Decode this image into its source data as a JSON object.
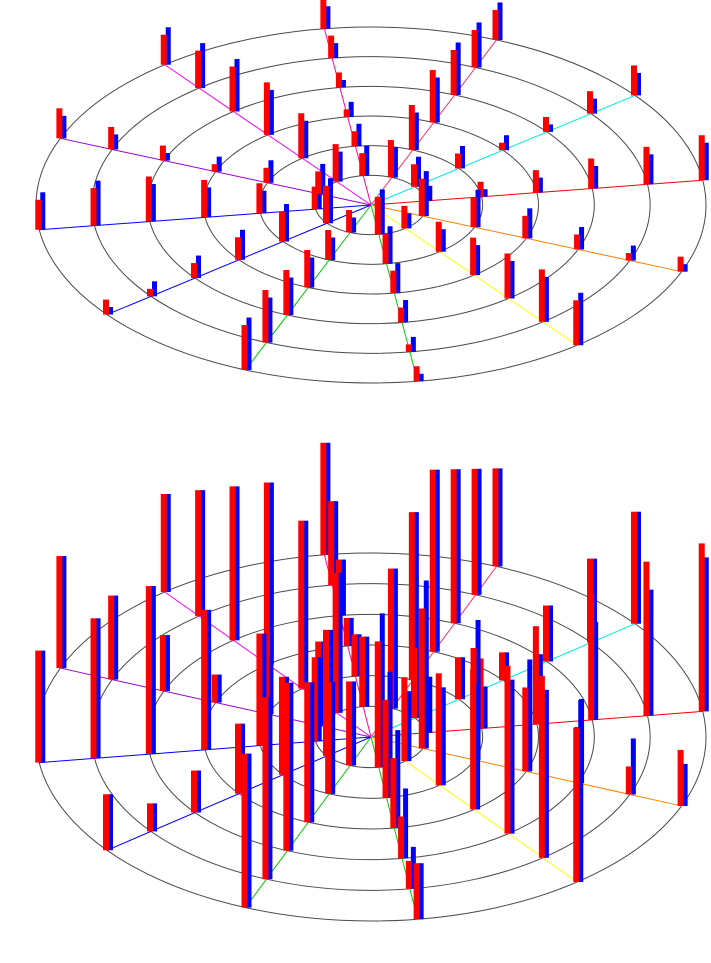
{
  "chart_data": [
    {
      "type": "polar-3d-bar",
      "title": "",
      "rings": 6,
      "spokes": 12,
      "colors": {
        "ring": "#4a4a4a",
        "spokes": [
          "#ff0000",
          "#ff8000",
          "#ffff00",
          "#00cc00",
          "#00cc00",
          "#0000ff",
          "#0000ff",
          "#9900cc",
          "#ff00ff",
          "#ff00aa",
          "#ff3366",
          "#00e6e6"
        ],
        "series_a": "#ff0000",
        "series_b": "#0000ff"
      },
      "series": [
        {
          "values": [
            1,
            2,
            3,
            4,
            5,
            6,
            5,
            4,
            3,
            2,
            1,
            2,
            3,
            4,
            5,
            6,
            7,
            6,
            5,
            4,
            3,
            2,
            1,
            2,
            3,
            4,
            5,
            6,
            7,
            6,
            5,
            4,
            3,
            2,
            1,
            2,
            3,
            4,
            5,
            6,
            5,
            4,
            3,
            2,
            1,
            2,
            3,
            4,
            5,
            6,
            7,
            6,
            5,
            4,
            3,
            2,
            1,
            2,
            3,
            4,
            5,
            6,
            7,
            6,
            5,
            4,
            3,
            2,
            1,
            2,
            3,
            4
          ]
        },
        {
          "values": [
            2,
            1,
            2,
            3,
            4,
            5,
            6,
            5,
            4,
            3,
            2,
            1,
            2,
            3,
            4,
            5,
            6,
            7,
            6,
            5,
            4,
            3,
            2,
            1,
            2,
            3,
            4,
            5,
            6,
            7,
            6,
            5,
            4,
            3,
            2,
            1,
            2,
            3,
            4,
            5,
            6,
            5,
            4,
            3,
            2,
            1,
            2,
            3,
            4,
            5,
            6,
            7,
            6,
            5,
            4,
            3,
            2,
            1,
            2,
            3,
            4,
            5,
            6,
            7,
            6,
            5,
            4,
            3,
            2,
            1,
            2,
            3
          ]
        }
      ]
    },
    {
      "type": "polar-3d-bar",
      "title": "",
      "rings": 6,
      "spokes": 12,
      "colors": {
        "ring": "#4a4a4a",
        "spokes": [
          "#ff0000",
          "#ff8000",
          "#ffff00",
          "#00cc00",
          "#00cc00",
          "#0000ff",
          "#0000ff",
          "#9900cc",
          "#ff00ff",
          "#ff00aa",
          "#ff3366",
          "#00e6e6"
        ],
        "series_a": "#ff0000",
        "series_b": "#0000ff"
      },
      "series": [
        {
          "values": [
            3,
            5,
            7,
            9,
            11,
            12,
            10,
            8,
            6,
            4,
            2,
            4,
            6,
            8,
            10,
            12,
            13,
            11,
            9,
            7,
            5,
            3,
            2,
            4,
            6,
            8,
            10,
            12,
            13,
            11,
            9,
            7,
            5,
            3,
            2,
            4,
            6,
            8,
            10,
            12,
            10,
            8,
            6,
            4,
            2,
            4,
            6,
            8,
            10,
            12,
            13,
            11,
            9,
            7,
            5,
            3,
            2,
            4,
            6,
            8,
            10,
            12,
            13,
            11,
            9,
            7,
            5,
            3,
            2,
            4,
            6,
            8
          ]
        },
        {
          "values": [
            4,
            3,
            5,
            7,
            9,
            11,
            12,
            10,
            8,
            6,
            4,
            3,
            5,
            7,
            9,
            11,
            12,
            13,
            11,
            9,
            7,
            5,
            3,
            4,
            6,
            8,
            10,
            12,
            13,
            11,
            9,
            7,
            5,
            3,
            2,
            4,
            6,
            8,
            10,
            12,
            10,
            8,
            6,
            4,
            2,
            4,
            6,
            8,
            10,
            12,
            13,
            11,
            9,
            7,
            5,
            3,
            2,
            4,
            6,
            8,
            10,
            12,
            13,
            11,
            9,
            7,
            5,
            3,
            2,
            4,
            6,
            8
          ]
        }
      ]
    }
  ]
}
